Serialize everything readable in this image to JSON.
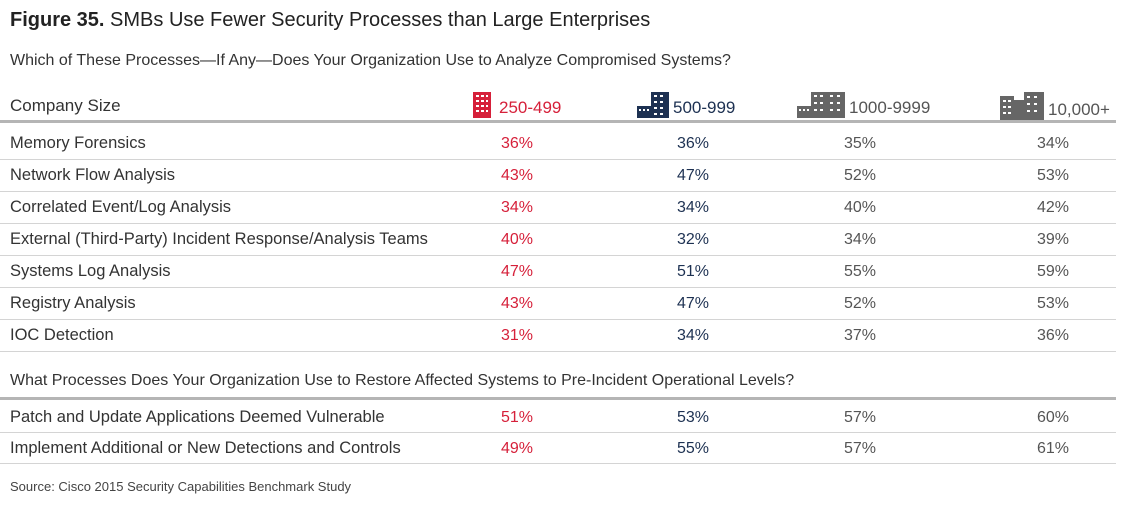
{
  "title_bold": "Figure 35.",
  "title_rest": " SMBs Use Fewer Security Processes than Large Enterprises",
  "source": "Source: Cisco 2015 Security Capabilities Benchmark Study",
  "chart_data": {
    "type": "table",
    "row_header": "Company Size",
    "columns": [
      {
        "label": "250-499",
        "color": "#d6203a",
        "icon": "small-building-icon"
      },
      {
        "label": "500-999",
        "color": "#1d3152",
        "icon": "medium-building-icon"
      },
      {
        "label": "1000-9999",
        "color": "#555555",
        "icon": "large-building-icon"
      },
      {
        "label": "10,000+",
        "color": "#555555",
        "icon": "enterprise-building-icon"
      }
    ],
    "sections": [
      {
        "question": "Which of These Processes—If Any—Does Your Organization Use to Analyze Compromised Systems?",
        "rows": [
          {
            "label": "Memory Forensics",
            "values": [
              "36%",
              "36%",
              "35%",
              "34%"
            ]
          },
          {
            "label": "Network Flow Analysis",
            "values": [
              "43%",
              "47%",
              "52%",
              "53%"
            ]
          },
          {
            "label": "Correlated Event/Log Analysis",
            "values": [
              "34%",
              "34%",
              "40%",
              "42%"
            ]
          },
          {
            "label": "External (Third-Party) Incident Response/Analysis Teams",
            "values": [
              "40%",
              "32%",
              "34%",
              "39%"
            ]
          },
          {
            "label": "Systems Log Analysis",
            "values": [
              "47%",
              "51%",
              "55%",
              "59%"
            ]
          },
          {
            "label": "Registry Analysis",
            "values": [
              "43%",
              "47%",
              "52%",
              "53%"
            ]
          },
          {
            "label": "IOC Detection",
            "values": [
              "31%",
              "34%",
              "37%",
              "36%"
            ]
          }
        ]
      },
      {
        "question": "What Processes Does Your Organization Use to Restore Affected Systems to Pre-Incident Operational Levels?",
        "rows": [
          {
            "label": "Patch and Update Applications Deemed Vulnerable",
            "values": [
              "51%",
              "53%",
              "57%",
              "60%"
            ]
          },
          {
            "label": "Implement Additional or New Detections and Controls",
            "values": [
              "49%",
              "55%",
              "57%",
              "61%"
            ]
          }
        ]
      }
    ]
  }
}
